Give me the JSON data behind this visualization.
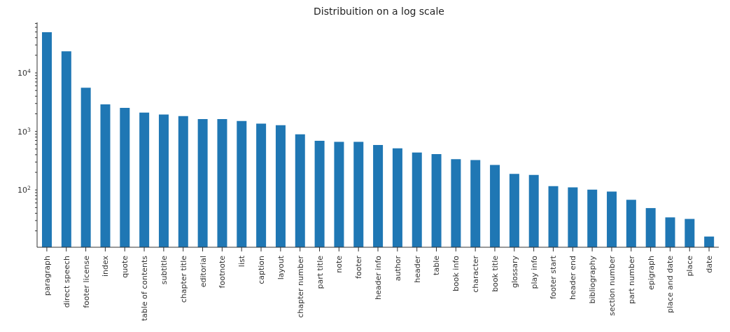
{
  "chart_data": {
    "type": "bar",
    "title": "Distribuition on a log scale",
    "categories": [
      "paragraph",
      "direct speech",
      "footer license",
      "index",
      "quote",
      "table of contents",
      "subtitle",
      "chapter title",
      "editorial",
      "footnote",
      "list",
      "caption",
      "layout",
      "chapter number",
      "part title",
      "note",
      "footer",
      "header info",
      "author",
      "header",
      "table",
      "book info",
      "character",
      "book title",
      "glossary",
      "play info",
      "footer start",
      "header end",
      "bibliography",
      "section number",
      "part number",
      "epigraph",
      "place and date",
      "place",
      "date"
    ],
    "values": [
      49500,
      23300,
      5590,
      2900,
      2530,
      2100,
      1950,
      1830,
      1620,
      1620,
      1510,
      1360,
      1280,
      895,
      690,
      666,
      666,
      586,
      513,
      436,
      410,
      336,
      324,
      268,
      188,
      181,
      116,
      111,
      101,
      94,
      68,
      49,
      34,
      32,
      16
    ],
    "color": "#1f77b4",
    "log": "y",
    "ylim": [
      10.5,
      72800
    ],
    "yticks": [
      {
        "value": 20,
        "label": null
      },
      {
        "value": 30,
        "label": null
      },
      {
        "value": 40,
        "label": null
      },
      {
        "value": 50,
        "label": null
      },
      {
        "value": 60,
        "label": null
      },
      {
        "value": 70,
        "label": null
      },
      {
        "value": 80,
        "label": null
      },
      {
        "value": 90,
        "label": null
      },
      {
        "value": 100,
        "label": "10$^{2}$"
      },
      {
        "value": 200,
        "label": null
      },
      {
        "value": 300,
        "label": null
      },
      {
        "value": 400,
        "label": null
      },
      {
        "value": 500,
        "label": null
      },
      {
        "value": 600,
        "label": null
      },
      {
        "value": 700,
        "label": null
      },
      {
        "value": 800,
        "label": null
      },
      {
        "value": 900,
        "label": null
      },
      {
        "value": 1000,
        "label": "10$^{3}$"
      },
      {
        "value": 2000,
        "label": null
      },
      {
        "value": 3000,
        "label": null
      },
      {
        "value": 4000,
        "label": null
      },
      {
        "value": 5000,
        "label": null
      },
      {
        "value": 6000,
        "label": null
      },
      {
        "value": 7000,
        "label": null
      },
      {
        "value": 8000,
        "label": null
      },
      {
        "value": 9000,
        "label": null
      },
      {
        "value": 10000,
        "label": "10$^{4}$"
      },
      {
        "value": 20000,
        "label": null
      },
      {
        "value": 30000,
        "label": null
      },
      {
        "value": 40000,
        "label": null
      },
      {
        "value": 50000,
        "label": null
      },
      {
        "value": 60000,
        "label": null
      },
      {
        "value": 70000,
        "label": null
      }
    ]
  }
}
